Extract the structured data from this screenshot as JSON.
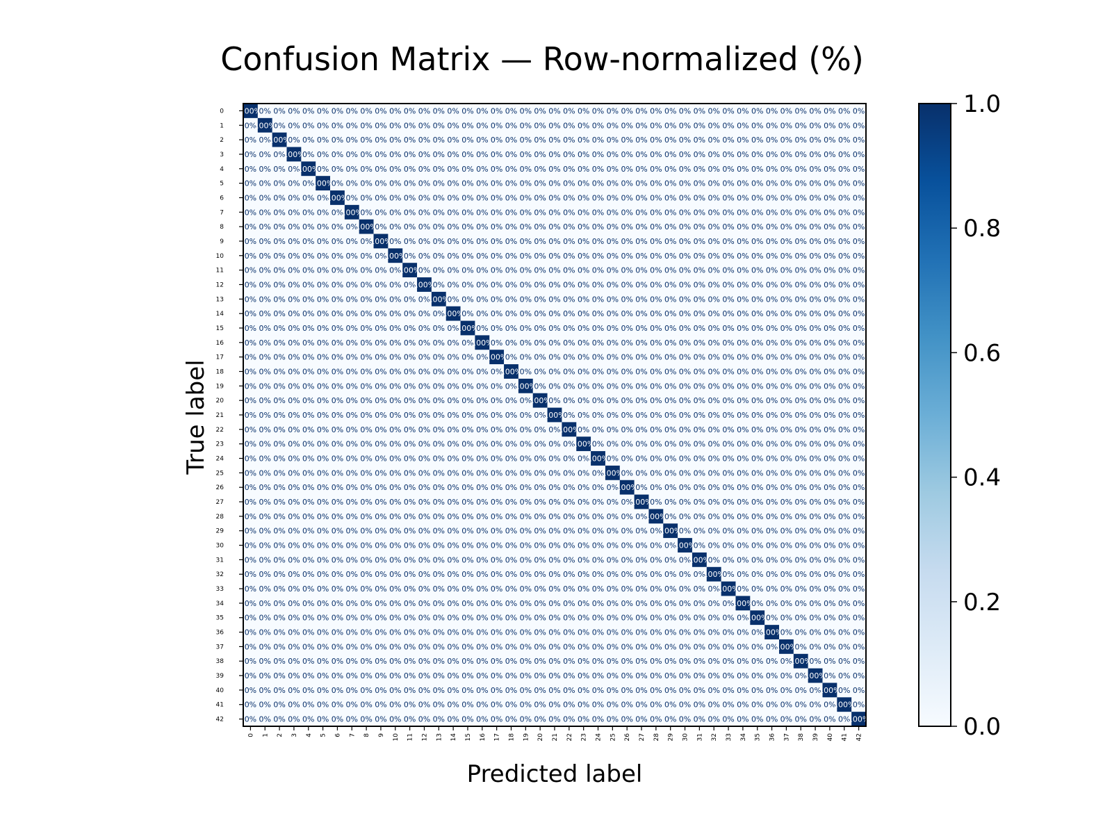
{
  "chart_data": {
    "type": "heatmap",
    "title": "Confusion Matrix — Row-normalized (%)",
    "xlabel": "Predicted label",
    "ylabel": "True label",
    "class_labels": [
      "0",
      "1",
      "2",
      "3",
      "4",
      "5",
      "6",
      "7",
      "8",
      "9",
      "10",
      "11",
      "12",
      "13",
      "14",
      "15",
      "16",
      "17",
      "18",
      "19",
      "20",
      "21",
      "22",
      "23",
      "24",
      "25",
      "26",
      "27",
      "28",
      "29",
      "30",
      "31",
      "32",
      "33",
      "34",
      "35",
      "36",
      "37",
      "38",
      "39",
      "40",
      "41",
      "42"
    ],
    "diagonal_value": 1.0,
    "off_diagonal_value": 0.0,
    "value_range": [
      0,
      1
    ],
    "cell_text_diagonal": "100%",
    "cell_text_off_diagonal": "0%",
    "colormap": "Blues",
    "colorbar": {
      "ticks": [
        0.0,
        0.2,
        0.4,
        0.6,
        0.8,
        1.0
      ],
      "tick_labels": [
        "0.0",
        "0.2",
        "0.4",
        "0.6",
        "0.8",
        "1.0"
      ],
      "min_color": "#f7fbff",
      "max_color": "#08306b"
    },
    "colors": {
      "diagonal_cell": "#08306b",
      "off_diagonal_cell": "#f7fbff",
      "text_on_dark": "#ffffff",
      "text_on_light": "#08306b"
    }
  }
}
